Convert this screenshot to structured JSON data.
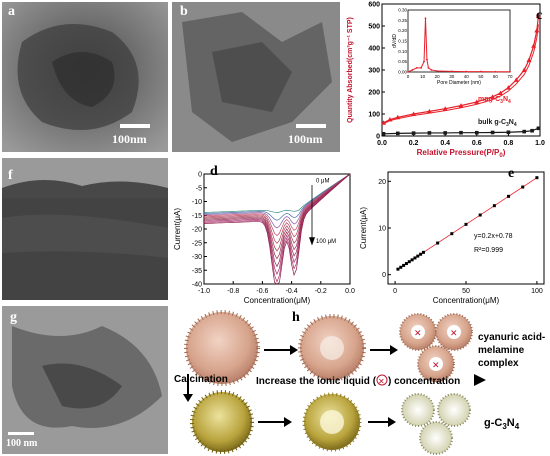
{
  "panels": {
    "a": {
      "label": "a",
      "scale": "100nm"
    },
    "b": {
      "label": "b",
      "scale": "100nm"
    },
    "c": {
      "label": "c"
    },
    "f": {
      "label": "f"
    },
    "d": {
      "label": "d"
    },
    "e": {
      "label": "e"
    },
    "g": {
      "label": "g",
      "scale": "100 nm"
    },
    "h": {
      "label": "h"
    }
  },
  "schematic": {
    "calcination": "Calcination",
    "arrow_text_pre": "Increase the ionic liquid (",
    "arrow_text_post": ") concentration",
    "label_top_line1": "cyanuric acid-",
    "label_top_line2": "melamine",
    "label_top_line3": "complex",
    "label_bottom": "g-C",
    "label_bottom_sub": "3",
    "label_bottom_post": "N",
    "label_bottom_sub2": "4"
  },
  "chart_data": [
    {
      "panel": "c",
      "type": "line",
      "xlabel": "Relative Pressure(P/P",
      "xlabel_sub": "0",
      "xlabel_post": ")",
      "ylabel": "Quantity Absorbed(cm³g⁻¹ STP)",
      "xlim": [
        0.0,
        1.0
      ],
      "ylim": [
        0,
        600
      ],
      "xticks": [
        "0.0",
        "0.2",
        "0.4",
        "0.6",
        "0.8",
        "1.0"
      ],
      "yticks": [
        "0",
        "100",
        "200",
        "300",
        "400",
        "500",
        "600"
      ],
      "series": [
        {
          "name": "mpg-C3N4",
          "name_main": "mpg-C",
          "name_sub": "3",
          "name_post": "N",
          "name_sub2": "4",
          "color": "#e8202a",
          "x": [
            0.01,
            0.05,
            0.1,
            0.2,
            0.3,
            0.4,
            0.5,
            0.6,
            0.7,
            0.75,
            0.8,
            0.85,
            0.9,
            0.93,
            0.96,
            0.98,
            0.99
          ],
          "y": [
            60,
            75,
            85,
            100,
            112,
            124,
            138,
            155,
            178,
            195,
            220,
            255,
            300,
            345,
            410,
            480,
            545
          ]
        },
        {
          "name": "bulk g-C3N4",
          "name_main": "bulk g-C",
          "name_sub": "3",
          "name_post": "N",
          "name_sub2": "4",
          "color": "#1a1a1a",
          "x": [
            0.01,
            0.1,
            0.2,
            0.3,
            0.4,
            0.5,
            0.6,
            0.7,
            0.8,
            0.9,
            0.95,
            0.99
          ],
          "y": [
            10,
            12,
            13,
            14,
            14,
            15,
            15,
            16,
            17,
            20,
            24,
            35
          ]
        }
      ],
      "inset": {
        "xlabel": "Pore Diameter (nm)",
        "ylabel": "dV/dD",
        "xticks": [
          "0",
          "10",
          "20",
          "30",
          "40",
          "50",
          "60",
          "70"
        ],
        "yticks": [
          "0.00",
          "0.05",
          "0.10",
          "0.15",
          "0.20",
          "0.25",
          "0.30"
        ],
        "xlim": [
          0,
          70
        ],
        "ylim": [
          0,
          0.3
        ],
        "x": [
          0,
          3,
          6,
          9,
          11,
          12,
          13,
          14,
          16,
          20,
          30,
          40,
          50,
          60,
          70
        ],
        "y": [
          0.0,
          0.01,
          0.02,
          0.02,
          0.05,
          0.26,
          0.06,
          0.02,
          0.01,
          0.005,
          0.003,
          0.002,
          0.002,
          0.001,
          0.001
        ]
      }
    },
    {
      "panel": "d",
      "type": "line",
      "xlabel": "Concentration(μM)",
      "ylabel": "Current(μA)",
      "xlim": [
        -1.0,
        0.0
      ],
      "ylim": [
        -40,
        0
      ],
      "xticks": [
        "-1.0",
        "-0.8",
        "-0.6",
        "-0.4",
        "-0.2",
        "0.0"
      ],
      "yticks": [
        "0",
        "-5",
        "-10",
        "-15",
        "-20",
        "-25",
        "-30",
        "-35",
        "-40"
      ],
      "annotations": [
        "0 μM",
        "100 μM"
      ],
      "curve_count": 11
    },
    {
      "panel": "e",
      "type": "scatter",
      "xlabel": "Concentration(μM)",
      "ylabel": "Current(μA)",
      "xlim": [
        -5,
        105
      ],
      "ylim": [
        -2,
        22
      ],
      "xticks": [
        "0",
        "50",
        "100"
      ],
      "yticks": [
        "0",
        "10",
        "20"
      ],
      "equation": "y=0.2x+0.78",
      "r2": "R²=0.999",
      "x": [
        2,
        4,
        6,
        8,
        10,
        12,
        14,
        16,
        18,
        20,
        30,
        40,
        50,
        60,
        70,
        80,
        90,
        100
      ],
      "y": [
        1.18,
        1.58,
        1.98,
        2.38,
        2.78,
        3.18,
        3.58,
        3.98,
        4.38,
        4.78,
        6.78,
        8.78,
        10.78,
        12.78,
        14.78,
        16.78,
        18.78,
        20.78
      ]
    }
  ]
}
